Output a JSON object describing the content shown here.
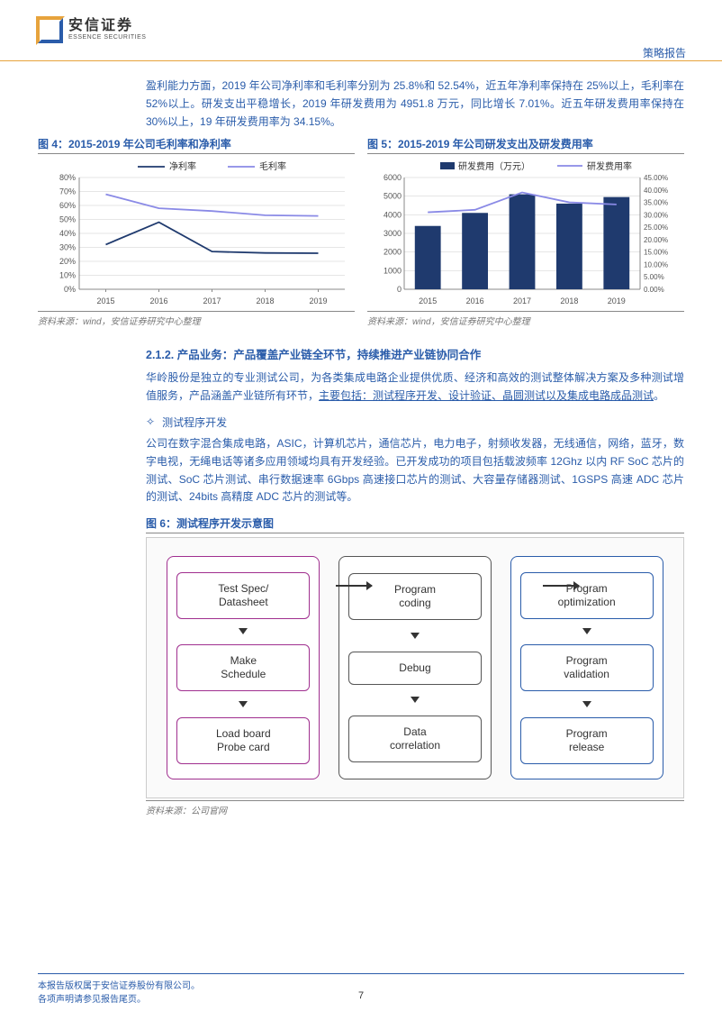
{
  "header": {
    "logo_cn": "安信证券",
    "logo_en": "ESSENCE SECURITIES",
    "report_type": "策略报告"
  },
  "para1": "盈利能力方面，2019 年公司净利率和毛利率分别为 25.8%和 52.54%，近五年净利率保持在 25%以上，毛利率在 52%以上。研发支出平稳增长，2019 年研发费用为 4951.8 万元，同比增长 7.01%。近五年研发费用率保持在 30%以上，19 年研发费用率为 34.15%。",
  "chart4": {
    "title": "图 4：2015-2019 年公司毛利率和净利率",
    "legend": [
      "净利率",
      "毛利率"
    ],
    "categories": [
      "2015",
      "2016",
      "2017",
      "2018",
      "2019"
    ],
    "net_profit_rate": [
      32,
      48,
      27,
      26,
      25.8
    ],
    "gross_margin": [
      68,
      58,
      56,
      53,
      52.5
    ],
    "y_ticks": [
      "0%",
      "10%",
      "20%",
      "30%",
      "40%",
      "50%",
      "60%",
      "70%",
      "80%"
    ],
    "colors": {
      "net": "#1f3a6e",
      "gross": "#8a8ae6",
      "grid": "#cccccc",
      "bg": "#ffffff"
    },
    "source": "资料来源：wind，安信证券研究中心整理"
  },
  "chart5": {
    "title": "图 5：2015-2019 年公司研发支出及研发费用率",
    "legend": [
      "研发费用（万元）",
      "研发费用率"
    ],
    "categories": [
      "2015",
      "2016",
      "2017",
      "2018",
      "2019"
    ],
    "rd_expense": [
      3400,
      4100,
      5100,
      4600,
      4951.8
    ],
    "rd_rate": [
      31,
      32,
      39,
      35,
      34.15
    ],
    "y1_ticks": [
      "0",
      "1000",
      "2000",
      "3000",
      "4000",
      "5000",
      "6000"
    ],
    "y2_ticks": [
      "0.00%",
      "5.00%",
      "10.00%",
      "15.00%",
      "20.00%",
      "25.00%",
      "30.00%",
      "35.00%",
      "40.00%",
      "45.00%"
    ],
    "colors": {
      "bar": "#1f3a6e",
      "line": "#8a8ae6",
      "grid": "#cccccc",
      "bg": "#ffffff"
    },
    "source": "资料来源：wind，安信证券研究中心整理"
  },
  "section": "2.1.2. 产品业务：产品覆盖产业链全环节，持续推进产业链协同合作",
  "para2_a": "华岭股份是独立的专业测试公司，为各类集成电路企业提供优质、经济和高效的测试整体解决方案及多种测试增值服务，产品涵盖产业链所有环节，",
  "para2_u": "主要包括：测试程序开发、设计验证、晶圆测试以及集成电路成品测试",
  "para2_b": "。",
  "bullet1": "测试程序开发",
  "para3": "公司在数字混合集成电路，ASIC，计算机芯片，通信芯片，电力电子，射频收发器，无线通信，网络，蓝牙，数字电视，无绳电话等诸多应用领域均具有开发经验。已开发成功的项目包括载波频率 12Ghz 以内 RF SoC 芯片的测试、SoC 芯片测试、串行数据速率 6Gbps 高速接口芯片的测试、大容量存储器测试、1GSPS 高速 ADC 芯片的测试、24bits 高精度 ADC 芯片的测试等。",
  "fig6": {
    "title": "图 6：测试程序开发示意图",
    "col1": [
      "Test Spec/\nDatasheet",
      "Make\nSchedule",
      "Load board\nProbe card"
    ],
    "col2": [
      "Program\ncoding",
      "Debug",
      "Data\ncorrelation"
    ],
    "col3": [
      "Program\noptimization",
      "Program\nvalidation",
      "Program\nrelease"
    ],
    "source": "资料来源：公司官网"
  },
  "footer": {
    "line1": "本报告版权属于安信证券股份有限公司。",
    "line2": "各项声明请参见报告尾页。",
    "page": "7"
  }
}
